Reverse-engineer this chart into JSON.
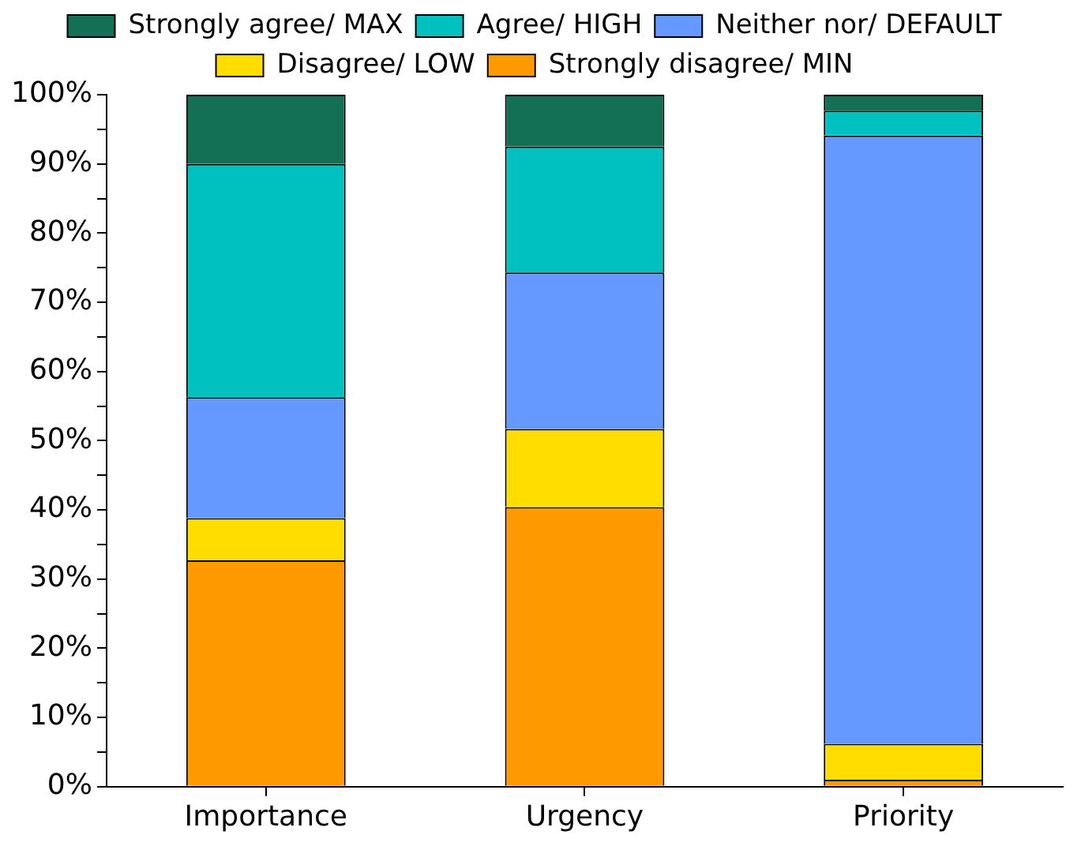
{
  "chart_data": {
    "type": "bar",
    "stacked": true,
    "categories": [
      "Importance",
      "Urgency",
      "Priority"
    ],
    "series": [
      {
        "name": "Strongly disagree/ MIN",
        "color": "#ff9900",
        "values": [
          32.7,
          40.4,
          1.0
        ]
      },
      {
        "name": "Disagree/ LOW",
        "color": "#ffdd00",
        "values": [
          6.1,
          11.3,
          5.2
        ]
      },
      {
        "name": "Neither nor/ DEFAULT",
        "color": "#6699ff",
        "values": [
          17.5,
          22.6,
          87.9
        ]
      },
      {
        "name": "Agree/ HIGH",
        "color": "#00c0c0",
        "values": [
          33.7,
          18.2,
          3.6
        ]
      },
      {
        "name": "Strongly agree/ MAX",
        "color": "#137054",
        "values": [
          10.0,
          7.5,
          2.3
        ]
      }
    ],
    "ylim": [
      0,
      100
    ],
    "yticks": [
      {
        "value": 0,
        "label": "0%"
      },
      {
        "value": 5,
        "label": null
      },
      {
        "value": 10,
        "label": "10%"
      },
      {
        "value": 15,
        "label": null
      },
      {
        "value": 20,
        "label": "20%"
      },
      {
        "value": 25,
        "label": null
      },
      {
        "value": 30,
        "label": "30%"
      },
      {
        "value": 35,
        "label": null
      },
      {
        "value": 40,
        "label": "40%"
      },
      {
        "value": 45,
        "label": null
      },
      {
        "value": 50,
        "label": "50%"
      },
      {
        "value": 55,
        "label": null
      },
      {
        "value": 60,
        "label": "60%"
      },
      {
        "value": 65,
        "label": null
      },
      {
        "value": 70,
        "label": "70%"
      },
      {
        "value": 75,
        "label": null
      },
      {
        "value": 80,
        "label": "80%"
      },
      {
        "value": 85,
        "label": null
      },
      {
        "value": 90,
        "label": "90%"
      },
      {
        "value": 95,
        "label": null
      },
      {
        "value": 100,
        "label": "100%"
      }
    ],
    "grid": false,
    "legend": "top"
  }
}
